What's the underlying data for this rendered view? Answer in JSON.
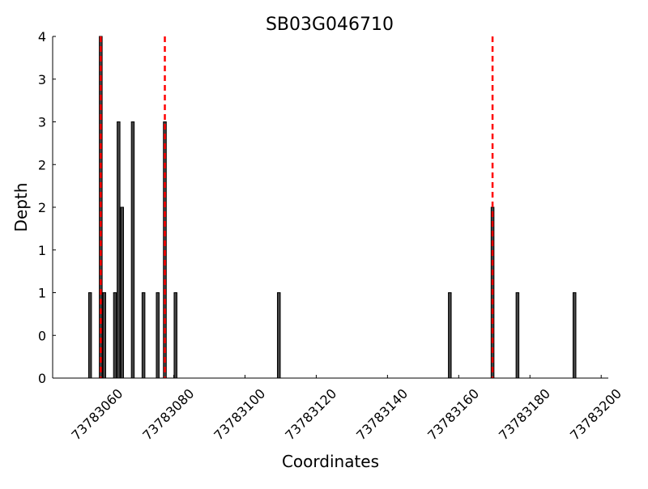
{
  "chart_data": {
    "type": "bar",
    "title": "SB03G046710",
    "xlabel": "Coordinates",
    "ylabel": "Depth",
    "xlim": [
      73783046,
      73783202
    ],
    "ylim": [
      0,
      4
    ],
    "grid": false,
    "bar_color": "#444444",
    "bar_edge_color": "#000000",
    "marker_color": "#ff0000",
    "x_ticks": [
      73783060,
      73783080,
      73783100,
      73783120,
      73783140,
      73783160,
      73783180,
      73783200
    ],
    "x_tick_labels": [
      "73783060",
      "73783080",
      "73783100",
      "73783120",
      "73783140",
      "73783160",
      "73783180",
      "73783200"
    ],
    "y_ticks": [
      0,
      0.5,
      1,
      1.5,
      2,
      2.5,
      3,
      3.5,
      4
    ],
    "y_tick_labels": [
      "0",
      "0",
      "1",
      "1",
      "2",
      "2",
      "3",
      "3",
      "4"
    ],
    "bars": [
      {
        "x": 73783056,
        "depth": 1
      },
      {
        "x": 73783059,
        "depth": 4
      },
      {
        "x": 73783060,
        "depth": 1
      },
      {
        "x": 73783063,
        "depth": 1
      },
      {
        "x": 73783064,
        "depth": 3
      },
      {
        "x": 73783065,
        "depth": 2
      },
      {
        "x": 73783068,
        "depth": 3
      },
      {
        "x": 73783071,
        "depth": 1
      },
      {
        "x": 73783075,
        "depth": 1
      },
      {
        "x": 73783077,
        "depth": 3
      },
      {
        "x": 73783080,
        "depth": 1
      },
      {
        "x": 73783109,
        "depth": 1
      },
      {
        "x": 73783157,
        "depth": 1
      },
      {
        "x": 73783169,
        "depth": 2
      },
      {
        "x": 73783176,
        "depth": 1
      },
      {
        "x": 73783192,
        "depth": 1
      }
    ],
    "vertical_lines": [
      73783059.5,
      73783077.5,
      73783169.5
    ]
  }
}
